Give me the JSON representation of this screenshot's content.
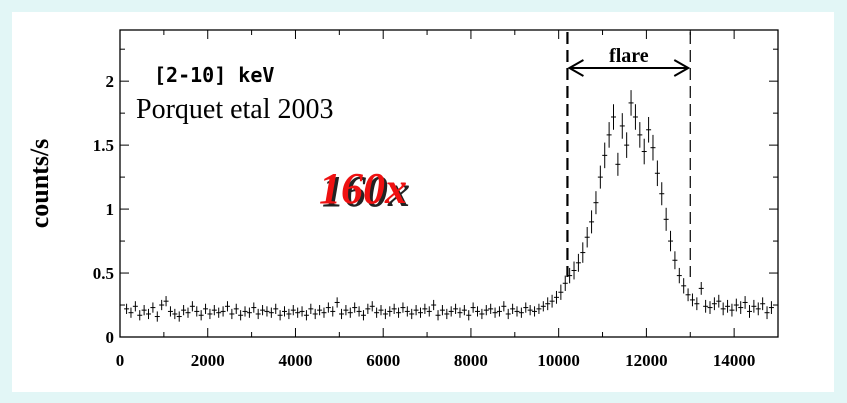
{
  "colors": {
    "page_background": "#e2f6f6",
    "panel_background": "#ffffff",
    "ink": "#000000",
    "highlight_fill": "#ee1111",
    "highlight_shadow": "#222222"
  },
  "chart_data": {
    "type": "scatter",
    "title": "",
    "xlabel": "",
    "ylabel": "counts/s",
    "xlim": [
      0,
      15000
    ],
    "ylim": [
      0,
      2.4
    ],
    "grid": false,
    "x_ticks": [
      {
        "value": 0,
        "label": "0"
      },
      {
        "value": 2000,
        "label": "2000"
      },
      {
        "value": 4000,
        "label": "4000"
      },
      {
        "value": 6000,
        "label": "6000"
      },
      {
        "value": 8000,
        "label": "8000"
      },
      {
        "value": 10000,
        "label": "10000"
      },
      {
        "value": 12000,
        "label": "12000"
      },
      {
        "value": 14000,
        "label": "14000"
      }
    ],
    "y_ticks": [
      {
        "value": 0,
        "label": "0"
      },
      {
        "value": 0.5,
        "label": "0.5"
      },
      {
        "value": 1,
        "label": "1"
      },
      {
        "value": 1.5,
        "label": "1.5"
      },
      {
        "value": 2,
        "label": "2"
      }
    ],
    "annotations": {
      "energy_band": "[2-10] keV",
      "reference": "Porquet etal 2003",
      "highlight": "160x",
      "flare_label": "flare"
    },
    "flare_interval": [
      10200,
      13000
    ],
    "series": [
      {
        "x": [
          150,
          250,
          350,
          450,
          550,
          650,
          750,
          850,
          950,
          1050,
          1150,
          1250,
          1350,
          1450,
          1550,
          1650,
          1750,
          1850,
          1950,
          2050,
          2150,
          2250,
          2350,
          2450,
          2550,
          2650,
          2750,
          2850,
          2950,
          3050,
          3150,
          3250,
          3350,
          3450,
          3550,
          3650,
          3750,
          3850,
          3950,
          4050,
          4150,
          4250,
          4350,
          4450,
          4550,
          4650,
          4750,
          4850,
          4950,
          5050,
          5150,
          5250,
          5350,
          5450,
          5550,
          5650,
          5750,
          5850,
          5950,
          6050,
          6150,
          6250,
          6350,
          6450,
          6550,
          6650,
          6750,
          6850,
          6950,
          7050,
          7150,
          7250,
          7350,
          7450,
          7550,
          7650,
          7750,
          7850,
          7950,
          8050,
          8150,
          8250,
          8350,
          8450,
          8550,
          8650,
          8750,
          8850,
          8950,
          9050,
          9150,
          9250,
          9350,
          9450,
          9550,
          9650,
          9750,
          9850,
          9950,
          10050,
          10150,
          10250,
          10350,
          10450,
          10550,
          10650,
          10750,
          10850,
          10950,
          11050,
          11150,
          11250,
          11350,
          11450,
          11550,
          11650,
          11750,
          11850,
          11950,
          12050,
          12150,
          12250,
          12350,
          12450,
          12550,
          12650,
          12750,
          12850,
          12950,
          13050,
          13150,
          13250,
          13350,
          13450,
          13550,
          13650,
          13750,
          13850,
          13950,
          14050,
          14150,
          14250,
          14350,
          14450,
          14550,
          14650,
          14750,
          14850
        ],
        "y": [
          0.22,
          0.19,
          0.24,
          0.17,
          0.21,
          0.18,
          0.23,
          0.16,
          0.25,
          0.28,
          0.2,
          0.18,
          0.16,
          0.21,
          0.19,
          0.24,
          0.2,
          0.17,
          0.22,
          0.18,
          0.21,
          0.19,
          0.2,
          0.24,
          0.18,
          0.22,
          0.17,
          0.2,
          0.19,
          0.23,
          0.18,
          0.21,
          0.2,
          0.19,
          0.22,
          0.17,
          0.2,
          0.18,
          0.21,
          0.19,
          0.2,
          0.17,
          0.22,
          0.18,
          0.21,
          0.19,
          0.23,
          0.2,
          0.27,
          0.18,
          0.21,
          0.19,
          0.23,
          0.2,
          0.17,
          0.22,
          0.24,
          0.19,
          0.21,
          0.18,
          0.2,
          0.22,
          0.19,
          0.23,
          0.2,
          0.18,
          0.21,
          0.19,
          0.22,
          0.2,
          0.25,
          0.17,
          0.21,
          0.18,
          0.2,
          0.22,
          0.19,
          0.21,
          0.17,
          0.23,
          0.2,
          0.18,
          0.21,
          0.22,
          0.19,
          0.2,
          0.24,
          0.18,
          0.22,
          0.2,
          0.19,
          0.23,
          0.21,
          0.2,
          0.22,
          0.24,
          0.26,
          0.28,
          0.31,
          0.35,
          0.42,
          0.48,
          0.52,
          0.58,
          0.66,
          0.78,
          0.9,
          1.05,
          1.25,
          1.42,
          1.58,
          1.72,
          1.35,
          1.65,
          1.5,
          1.83,
          1.72,
          1.58,
          1.45,
          1.62,
          1.48,
          1.28,
          1.12,
          0.92,
          0.75,
          0.6,
          0.48,
          0.4,
          0.33,
          0.29,
          0.26,
          0.38,
          0.24,
          0.23,
          0.26,
          0.28,
          0.22,
          0.24,
          0.21,
          0.25,
          0.23,
          0.27,
          0.2,
          0.24,
          0.22,
          0.26,
          0.19,
          0.23
        ],
        "error": [
          0.04,
          0.04,
          0.04,
          0.04,
          0.04,
          0.04,
          0.04,
          0.04,
          0.04,
          0.04,
          0.04,
          0.04,
          0.04,
          0.04,
          0.04,
          0.04,
          0.04,
          0.04,
          0.04,
          0.04,
          0.04,
          0.04,
          0.04,
          0.04,
          0.04,
          0.04,
          0.04,
          0.04,
          0.04,
          0.04,
          0.04,
          0.04,
          0.04,
          0.04,
          0.04,
          0.04,
          0.04,
          0.04,
          0.04,
          0.04,
          0.04,
          0.04,
          0.04,
          0.04,
          0.04,
          0.04,
          0.04,
          0.04,
          0.04,
          0.04,
          0.04,
          0.04,
          0.04,
          0.04,
          0.04,
          0.04,
          0.04,
          0.04,
          0.04,
          0.04,
          0.04,
          0.04,
          0.04,
          0.04,
          0.04,
          0.04,
          0.04,
          0.04,
          0.04,
          0.04,
          0.04,
          0.04,
          0.04,
          0.04,
          0.04,
          0.04,
          0.04,
          0.04,
          0.04,
          0.04,
          0.04,
          0.04,
          0.04,
          0.04,
          0.04,
          0.04,
          0.04,
          0.04,
          0.04,
          0.04,
          0.04,
          0.04,
          0.04,
          0.04,
          0.04,
          0.04,
          0.05,
          0.05,
          0.05,
          0.06,
          0.06,
          0.06,
          0.07,
          0.07,
          0.08,
          0.08,
          0.09,
          0.09,
          0.09,
          0.1,
          0.1,
          0.1,
          0.09,
          0.1,
          0.1,
          0.1,
          0.1,
          0.1,
          0.1,
          0.1,
          0.1,
          0.1,
          0.09,
          0.09,
          0.08,
          0.07,
          0.06,
          0.06,
          0.05,
          0.05,
          0.05,
          0.05,
          0.05,
          0.05,
          0.05,
          0.05,
          0.05,
          0.05,
          0.05,
          0.05,
          0.05,
          0.05,
          0.05,
          0.05,
          0.05,
          0.05,
          0.05,
          0.05
        ]
      }
    ]
  }
}
